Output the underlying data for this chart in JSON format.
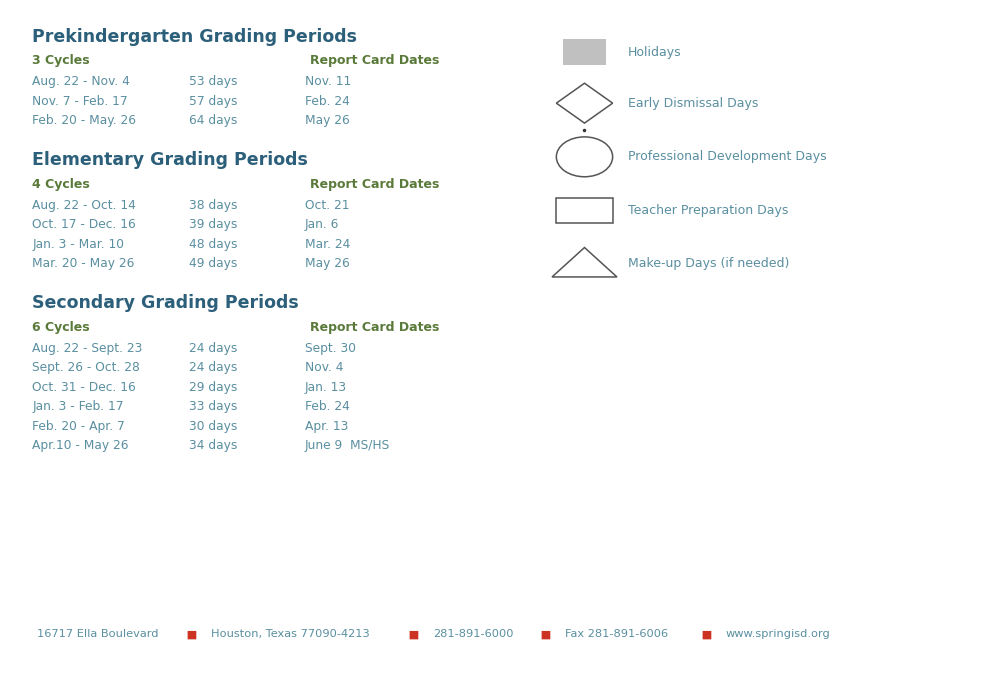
{
  "bg_color": "#ffffff",
  "title_color": "#2b5f7a",
  "cycles_color": "#5a7a3a",
  "text_color": "#5a8fa0",
  "report_bold_color": "#5a7a3a",
  "footer_color": "#5a8fa0",
  "red_color": "#cc3322",
  "legend_text_color": "#5a8fa0",
  "legend_shape_color": "#555555",
  "holiday_fill": "#c0c0c0",
  "preK_title": "Prekindergarten Grading Periods",
  "preK_cycles": "3 Cycles",
  "preK_report_header": "Report Card Dates",
  "preK_rows": [
    [
      "Aug. 22 - Nov. 4",
      "53 days",
      "Nov. 11"
    ],
    [
      "Nov. 7 - Feb. 17",
      "57 days",
      "Feb. 24"
    ],
    [
      "Feb. 20 - May. 26",
      "64 days",
      "May 26"
    ]
  ],
  "elem_title": "Elementary Grading Periods",
  "elem_cycles": "4 Cycles",
  "elem_report_header": "Report Card Dates",
  "elem_rows": [
    [
      "Aug. 22 - Oct. 14",
      "38 days",
      "Oct. 21"
    ],
    [
      "Oct. 17 - Dec. 16",
      "39 days",
      "Jan. 6"
    ],
    [
      "Jan. 3 - Mar. 10",
      "48 days",
      "Mar. 24"
    ],
    [
      "Mar. 20 - May 26",
      "49 days",
      "May 26"
    ]
  ],
  "sec_title": "Secondary Grading Periods",
  "sec_cycles": "6 Cycles",
  "sec_report_header": "Report Card Dates",
  "sec_rows": [
    [
      "Aug. 22 - Sept. 23",
      "24 days",
      "Sept. 30"
    ],
    [
      "Sept. 26 - Oct. 28",
      "24 days",
      "Nov. 4"
    ],
    [
      "Oct. 31 - Dec. 16",
      "29 days",
      "Jan. 13"
    ],
    [
      "Jan. 3 - Feb. 17",
      "33 days",
      "Feb. 24"
    ],
    [
      "Feb. 20 - Apr. 7",
      "30 days",
      "Apr. 13"
    ],
    [
      "Apr.10 - May 26",
      "34 days",
      "June 9  MS/HS"
    ]
  ],
  "legend_items": [
    {
      "label": "Holidays",
      "shape": "rect_filled"
    },
    {
      "label": "Early Dismissal Days",
      "shape": "diamond"
    },
    {
      "label": "Professional Development Days",
      "shape": "circle"
    },
    {
      "label": "Teacher Preparation Days",
      "shape": "rect_empty"
    },
    {
      "label": "Make-up Days (if needed)",
      "shape": "triangle"
    }
  ],
  "footer_parts": [
    "16717 Ella Boulevard",
    "Houston, Texas 77090-4213",
    "281-891-6000",
    "Fax 281-891-6006",
    "www.springisd.org"
  ]
}
